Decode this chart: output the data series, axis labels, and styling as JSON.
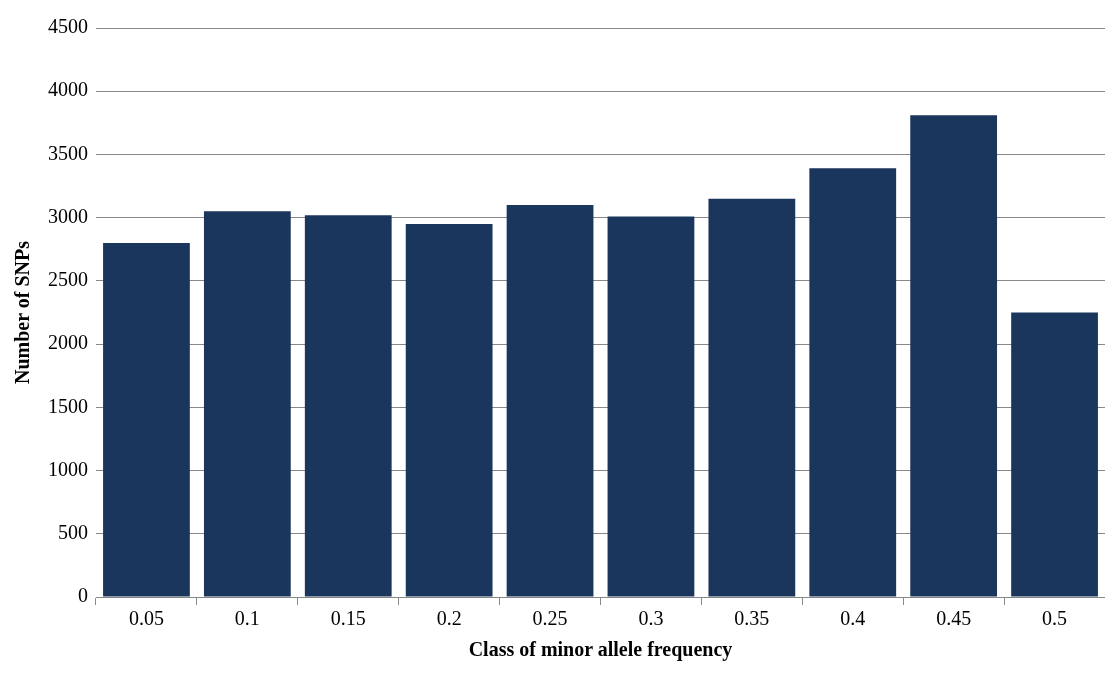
{
  "chart_data": {
    "type": "bar",
    "xlabel": "Class of minor allele frequency",
    "ylabel": "Number of SNPs",
    "categories": [
      "0.05",
      "0.1",
      "0.15",
      "0.2",
      "0.25",
      "0.3",
      "0.35",
      "0.4",
      "0.45",
      "0.5"
    ],
    "values": [
      2800,
      3050,
      3020,
      2950,
      3100,
      3010,
      3150,
      3390,
      3810,
      2250
    ],
    "color": "#1b365d",
    "ylim": [
      0,
      4500
    ],
    "yticks": [
      0,
      500,
      1000,
      1500,
      2000,
      2500,
      3000,
      3500,
      4000,
      4500
    ],
    "grid": "y"
  }
}
